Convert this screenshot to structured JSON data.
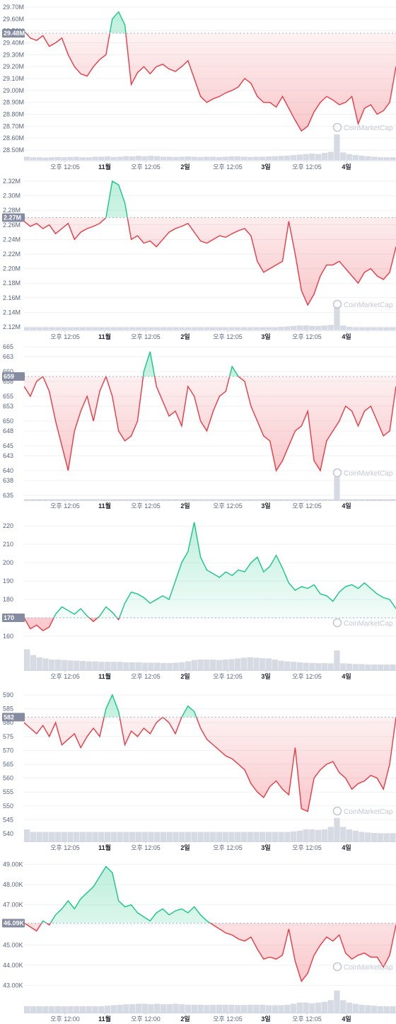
{
  "watermark": "CoinMarketCap",
  "colors": {
    "up": "#16c784",
    "down": "#ea3943",
    "volume": "#d6dae3",
    "grid": "#eff2f5",
    "tag": "#858ca2"
  },
  "chart_data": [
    {
      "type": "line",
      "current_label": "29.48M",
      "baseline": 29.48,
      "ylim": [
        28.5,
        29.7
      ],
      "y_ticks": [
        "28.50M",
        "28.60M",
        "28.70M",
        "28.80M",
        "28.90M",
        "29.00M",
        "29.10M",
        "29.20M",
        "29.30M",
        "29.40M",
        "29.50M",
        "29.60M",
        "29.70M"
      ],
      "x_ticks": [
        "오후 12:05",
        "11월",
        "오후 12:05",
        "2일",
        "오후 12:05",
        "3일",
        "오후 12:05",
        "4일"
      ],
      "series": [
        {
          "values": [
            29.5,
            29.44,
            29.42,
            29.46,
            29.37,
            29.4,
            29.44,
            29.3,
            29.2,
            29.14,
            29.12,
            29.2,
            29.26,
            29.3,
            29.6,
            29.66,
            29.55,
            29.05,
            29.15,
            29.2,
            29.14,
            29.2,
            29.22,
            29.18,
            29.16,
            29.2,
            29.25,
            29.1,
            28.95,
            28.9,
            28.93,
            28.95,
            28.98,
            29.0,
            29.03,
            29.1,
            29.06,
            28.95,
            28.9,
            28.9,
            28.86,
            28.95,
            28.85,
            28.75,
            28.66,
            28.7,
            28.82,
            28.9,
            28.95,
            28.92,
            28.88,
            28.9,
            28.95,
            28.72,
            28.85,
            28.88,
            28.8,
            28.83,
            28.9,
            29.2
          ]
        }
      ],
      "volume": [
        0.12,
        0.1,
        0.1,
        0.09,
        0.1,
        0.11,
        0.1,
        0.11,
        0.12,
        0.1,
        0.1,
        0.12,
        0.12,
        0.13,
        0.11,
        0.12,
        0.14,
        0.13,
        0.15,
        0.14,
        0.15,
        0.14,
        0.12,
        0.12,
        0.11,
        0.12,
        0.13,
        0.12,
        0.11,
        0.12,
        0.12,
        0.11,
        0.12,
        0.13,
        0.13,
        0.12,
        0.11,
        0.12,
        0.12,
        0.13,
        0.14,
        0.15,
        0.16,
        0.18,
        0.2,
        0.22,
        0.24,
        0.22,
        0.26,
        0.3,
        0.95,
        0.28,
        0.22,
        0.18,
        0.16,
        0.14,
        0.12,
        0.1,
        0.1,
        0.1
      ]
    },
    {
      "type": "line",
      "current_label": "2.27M",
      "baseline": 2.27,
      "ylim": [
        2.12,
        2.32
      ],
      "y_ticks": [
        "2.12M",
        "2.14M",
        "2.16M",
        "2.18M",
        "2.20M",
        "2.22M",
        "2.24M",
        "2.26M",
        "2.28M",
        "2.30M",
        "2.32M"
      ],
      "x_ticks": [
        "오후 12:05",
        "11월",
        "오후 12:05",
        "2일",
        "오후 12:05",
        "3일",
        "오후 12:05",
        "4일"
      ],
      "series": [
        {
          "values": [
            2.265,
            2.258,
            2.262,
            2.255,
            2.26,
            2.248,
            2.255,
            2.262,
            2.24,
            2.25,
            2.255,
            2.258,
            2.262,
            2.27,
            2.32,
            2.315,
            2.29,
            2.24,
            2.245,
            2.235,
            2.238,
            2.23,
            2.24,
            2.25,
            2.255,
            2.258,
            2.262,
            2.25,
            2.238,
            2.235,
            2.24,
            2.245,
            2.243,
            2.248,
            2.252,
            2.255,
            2.245,
            2.21,
            2.195,
            2.2,
            2.205,
            2.21,
            2.265,
            2.22,
            2.17,
            2.15,
            2.165,
            2.19,
            2.205,
            2.205,
            2.21,
            2.2,
            2.19,
            2.18,
            2.195,
            2.2,
            2.19,
            2.185,
            2.195,
            2.23
          ]
        }
      ],
      "volume": [
        0.1,
        0.1,
        0.1,
        0.1,
        0.1,
        0.1,
        0.1,
        0.1,
        0.1,
        0.1,
        0.1,
        0.1,
        0.1,
        0.1,
        0.1,
        0.1,
        0.1,
        0.1,
        0.1,
        0.1,
        0.1,
        0.1,
        0.1,
        0.1,
        0.1,
        0.1,
        0.1,
        0.1,
        0.1,
        0.1,
        0.1,
        0.1,
        0.1,
        0.1,
        0.1,
        0.1,
        0.1,
        0.1,
        0.1,
        0.1,
        0.1,
        0.12,
        0.14,
        0.16,
        0.18,
        0.18,
        0.16,
        0.16,
        0.18,
        0.2,
        0.95,
        0.18,
        0.12,
        0.1,
        0.1,
        0.1,
        0.1,
        0.1,
        0.1,
        0.1
      ]
    },
    {
      "type": "line",
      "current_label": "659",
      "baseline": 659,
      "ylim": [
        635,
        665
      ],
      "y_ticks": [
        "635",
        "638",
        "640",
        "643",
        "645",
        "648",
        "650",
        "653",
        "655",
        "658",
        "660",
        "663",
        "665"
      ],
      "x_ticks": [
        "오후 12:05",
        "11월",
        "오후 12:05",
        "2일",
        "오후 12:05",
        "3일",
        "오후 12:05",
        "4일"
      ],
      "series": [
        {
          "values": [
            657,
            655,
            658,
            659,
            656,
            650,
            645,
            640,
            648,
            652,
            655,
            650,
            656,
            659,
            655,
            648,
            646,
            647,
            650,
            660,
            664,
            657,
            654,
            651,
            652,
            649,
            657,
            655,
            650,
            648,
            652,
            655,
            656,
            661,
            659,
            658,
            653,
            650,
            647,
            646,
            640,
            642,
            645,
            648,
            649,
            652,
            642,
            640,
            646,
            648,
            650,
            653,
            652,
            649,
            652,
            653,
            650,
            647,
            648,
            657
          ]
        }
      ],
      "volume": [
        0.05,
        0.05,
        0.05,
        0.05,
        0.05,
        0.05,
        0.05,
        0.05,
        0.05,
        0.05,
        0.05,
        0.05,
        0.05,
        0.05,
        0.05,
        0.05,
        0.05,
        0.05,
        0.05,
        0.05,
        0.05,
        0.05,
        0.05,
        0.05,
        0.05,
        0.05,
        0.05,
        0.05,
        0.05,
        0.05,
        0.05,
        0.05,
        0.05,
        0.05,
        0.05,
        0.05,
        0.05,
        0.05,
        0.05,
        0.05,
        0.05,
        0.05,
        0.05,
        0.05,
        0.05,
        0.05,
        0.05,
        0.05,
        0.05,
        0.05,
        0.95,
        0.05,
        0.05,
        0.05,
        0.05,
        0.05,
        0.05,
        0.05,
        0.05,
        0.05
      ]
    },
    {
      "type": "line",
      "current_label": "170",
      "baseline": 170,
      "ylim": [
        155,
        222
      ],
      "y_ticks": [
        "160",
        "170",
        "180",
        "190",
        "200",
        "210",
        "220"
      ],
      "x_ticks": [
        "오후 12:05",
        "11월",
        "오후 12:05",
        "2일",
        "오후 12:05",
        "3일",
        "오후 12:05",
        "4일"
      ],
      "series": [
        {
          "values": [
            170,
            164,
            166,
            163,
            165,
            172,
            176,
            174,
            172,
            175,
            171,
            168,
            171,
            176,
            173,
            169,
            178,
            184,
            183,
            181,
            178,
            180,
            182,
            180,
            190,
            200,
            206,
            222,
            203,
            196,
            194,
            192,
            195,
            193,
            196,
            195,
            200,
            203,
            195,
            198,
            204,
            197,
            189,
            185,
            187,
            186,
            188,
            183,
            182,
            179,
            184,
            187,
            188,
            186,
            189,
            186,
            183,
            181,
            180,
            175
          ]
        }
      ],
      "volume": [
        0.95,
        0.7,
        0.6,
        0.55,
        0.5,
        0.5,
        0.48,
        0.46,
        0.45,
        0.44,
        0.42,
        0.42,
        0.4,
        0.4,
        0.4,
        0.4,
        0.38,
        0.38,
        0.38,
        0.36,
        0.36,
        0.36,
        0.35,
        0.35,
        0.36,
        0.38,
        0.42,
        0.48,
        0.5,
        0.5,
        0.5,
        0.48,
        0.5,
        0.52,
        0.55,
        0.58,
        0.6,
        0.58,
        0.56,
        0.55,
        0.5,
        0.45,
        0.42,
        0.4,
        0.38,
        0.36,
        0.35,
        0.34,
        0.34,
        0.33,
        0.9,
        0.33,
        0.32,
        0.3,
        0.3,
        0.28,
        0.28,
        0.28,
        0.28,
        0.28
      ]
    },
    {
      "type": "line",
      "current_label": "582",
      "baseline": 582,
      "ylim": [
        540,
        590
      ],
      "y_ticks": [
        "540",
        "545",
        "550",
        "555",
        "560",
        "565",
        "570",
        "575",
        "580",
        "585",
        "590"
      ],
      "x_ticks": [
        "오후 12:05",
        "11월",
        "오후 12:05",
        "2일",
        "오후 12:05",
        "3일",
        "오후 12:05",
        "4일"
      ],
      "series": [
        {
          "values": [
            580,
            578,
            576,
            579,
            575,
            580,
            572,
            574,
            576,
            571,
            575,
            578,
            575,
            585,
            590,
            584,
            572,
            577,
            575,
            578,
            576,
            580,
            582,
            580,
            576,
            582,
            586,
            584,
            578,
            574,
            572,
            570,
            568,
            567,
            565,
            563,
            558,
            555,
            553,
            557,
            559,
            556,
            554,
            571,
            549,
            548,
            560,
            563,
            565,
            566,
            562,
            560,
            556,
            558,
            559,
            561,
            560,
            556,
            565,
            582
          ]
        }
      ],
      "volume": [
        0.5,
        0.4,
        0.4,
        0.4,
        0.4,
        0.4,
        0.4,
        0.4,
        0.4,
        0.4,
        0.4,
        0.4,
        0.4,
        0.4,
        0.4,
        0.4,
        0.4,
        0.4,
        0.4,
        0.4,
        0.4,
        0.4,
        0.4,
        0.4,
        0.4,
        0.4,
        0.4,
        0.4,
        0.4,
        0.4,
        0.4,
        0.4,
        0.4,
        0.4,
        0.4,
        0.4,
        0.4,
        0.4,
        0.4,
        0.4,
        0.4,
        0.4,
        0.4,
        0.42,
        0.45,
        0.5,
        0.5,
        0.48,
        0.5,
        0.6,
        0.95,
        0.6,
        0.5,
        0.45,
        0.4,
        0.38,
        0.36,
        0.35,
        0.35,
        0.35
      ]
    },
    {
      "type": "line",
      "current_label": "46.09K",
      "baseline": 46.09,
      "ylim": [
        42.8,
        49.2
      ],
      "y_ticks": [
        "43.00K",
        "44.00K",
        "45.00K",
        "46.00K",
        "47.00K",
        "48.00K",
        "49.00K"
      ],
      "x_ticks": [
        "오후 12:00",
        "11월",
        "오후 12:00",
        "2일",
        "오후 12:05",
        "3일",
        "오후 12:05",
        "4일"
      ],
      "series": [
        {
          "values": [
            46.1,
            45.9,
            45.7,
            46.2,
            46.0,
            46.5,
            46.8,
            47.2,
            46.8,
            47.3,
            47.6,
            47.9,
            48.4,
            48.9,
            48.6,
            47.2,
            46.9,
            47.0,
            46.6,
            46.4,
            46.2,
            46.6,
            46.8,
            46.5,
            46.7,
            46.8,
            46.6,
            46.9,
            46.5,
            46.2,
            46.0,
            45.8,
            45.6,
            45.5,
            45.3,
            45.2,
            45.4,
            44.8,
            44.3,
            44.4,
            44.3,
            44.5,
            45.8,
            44.2,
            43.2,
            43.6,
            44.5,
            45.0,
            45.4,
            45.2,
            45.5,
            44.6,
            44.3,
            44.5,
            44.6,
            44.4,
            44.4,
            43.9,
            44.5,
            46.0
          ]
        }
      ],
      "volume": [
        0.3,
        0.3,
        0.3,
        0.3,
        0.3,
        0.3,
        0.3,
        0.3,
        0.3,
        0.3,
        0.3,
        0.3,
        0.3,
        0.32,
        0.34,
        0.36,
        0.38,
        0.38,
        0.4,
        0.4,
        0.38,
        0.4,
        0.38,
        0.38,
        0.4,
        0.38,
        0.36,
        0.36,
        0.36,
        0.35,
        0.36,
        0.36,
        0.36,
        0.36,
        0.35,
        0.35,
        0.36,
        0.36,
        0.36,
        0.34,
        0.34,
        0.34,
        0.36,
        0.4,
        0.45,
        0.45,
        0.42,
        0.45,
        0.48,
        0.55,
        0.95,
        0.55,
        0.45,
        0.4,
        0.36,
        0.34,
        0.32,
        0.3,
        0.3,
        0.3
      ]
    }
  ]
}
